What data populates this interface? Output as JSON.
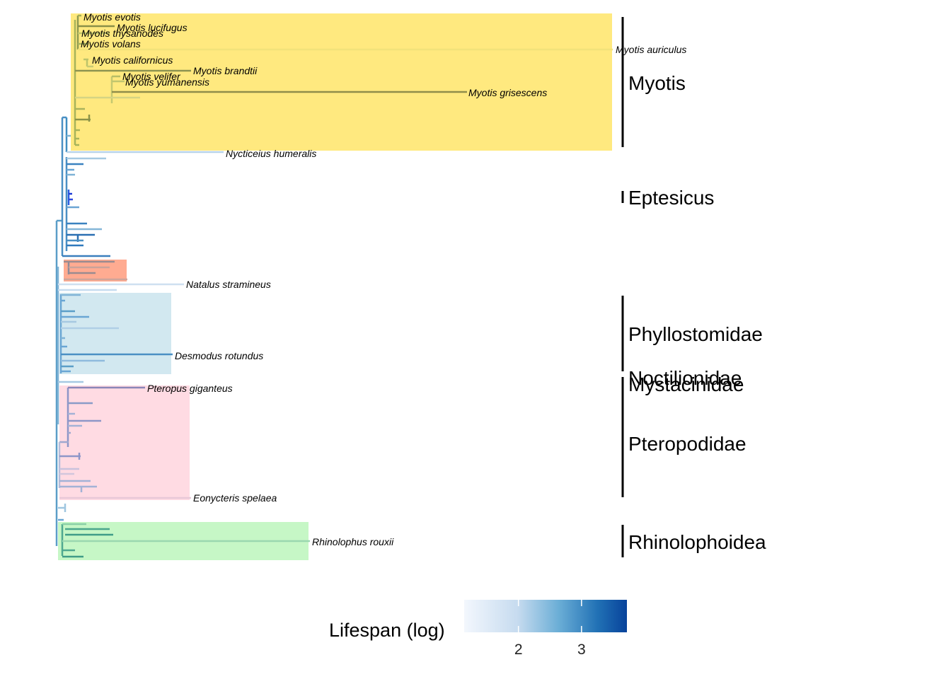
{
  "tip_labels": [
    {
      "id": "myotis-evotis",
      "text": "Myotis evotis"
    },
    {
      "id": "myotis-lucifugus",
      "text": "Myotis lucifugus"
    },
    {
      "id": "myotis-thysanodes",
      "text": "Myotis thysanodes"
    },
    {
      "id": "myotis-volans",
      "text": "Myotis volans"
    },
    {
      "id": "myotis-auriculus",
      "text": "Myotis auriculus"
    },
    {
      "id": "myotis-californicus",
      "text": "Myotis californicus"
    },
    {
      "id": "myotis-brandtii",
      "text": "Myotis brandtii"
    },
    {
      "id": "myotis-velifer",
      "text": "Myotis velifer"
    },
    {
      "id": "myotis-yumanensis",
      "text": "Myotis yumanensis"
    },
    {
      "id": "myotis-grisescens",
      "text": "Myotis grisescens"
    },
    {
      "id": "nycticeius-humeralis",
      "text": "Nycticeius humeralis"
    },
    {
      "id": "natalus-stramineus",
      "text": "Natalus stramineus"
    },
    {
      "id": "desmodus-rotundus",
      "text": "Desmodus rotundus"
    },
    {
      "id": "pteropus-giganteus",
      "text": "Pteropus giganteus"
    },
    {
      "id": "eonycteris-spelaea",
      "text": "Eonycteris spelaea"
    },
    {
      "id": "rhinolophus-rouxii",
      "text": "Rhinolophus rouxii"
    }
  ],
  "clade_labels": [
    {
      "id": "myotis",
      "text": "Myotis"
    },
    {
      "id": "eptesicus",
      "text": "Eptesicus"
    },
    {
      "id": "phyllostomidae",
      "text": "Phyllostomidae"
    },
    {
      "id": "noctilionidae",
      "text": "Noctilionidae"
    },
    {
      "id": "mystacinidae",
      "text": "Mystacinidae"
    },
    {
      "id": "pteropodidae",
      "text": "Pteropodidae"
    },
    {
      "id": "rhinolophoidea",
      "text": "Rhinolophoidea"
    }
  ],
  "highlight_colors": {
    "myotis": "#ffe97f",
    "vespertilionid_small": "#ffab91",
    "phyllostomidae": "#d2e8f0",
    "pteropodidae": "#ffdbe3",
    "rhinolophoidea": "#c6f7c6"
  },
  "legend": {
    "title": "Lifespan (log)",
    "ticks": [
      {
        "value": 2,
        "label": "2"
      },
      {
        "value": 3,
        "label": "3"
      }
    ],
    "range": [
      1.14,
      3.72
    ],
    "gradient": [
      "#f3f7fd",
      "#c6dbef",
      "#6baed6",
      "#2171b5",
      "#08439b"
    ]
  }
}
